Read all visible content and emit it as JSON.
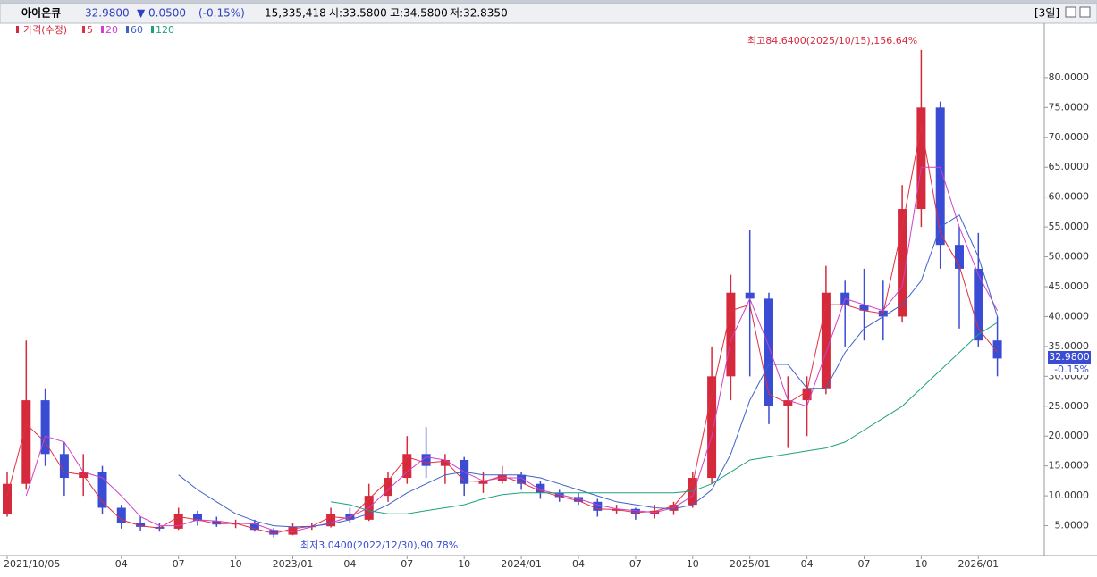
{
  "chart_data": {
    "type": "candlestick",
    "title": "아이온큐",
    "header": {
      "price": "32.9800",
      "change": "▼ 0.0500",
      "change_pct": "(-0.15%)",
      "volume": "15,335,418",
      "open": "시:33.5800",
      "high": "고:34.5800",
      "low": "저:32.8350",
      "period": "[3일]"
    },
    "price_name": "가격(수정)",
    "up_color": "#d42a3c",
    "down_color": "#3a4cd4",
    "categories": [
      "2021/10/05",
      null,
      null,
      null,
      null,
      null,
      "04",
      null,
      null,
      "07",
      null,
      null,
      "10",
      null,
      null,
      "2023/01",
      null,
      null,
      "04",
      null,
      null,
      "07",
      null,
      null,
      "10",
      null,
      null,
      "2024/01",
      null,
      null,
      "04",
      null,
      null,
      "07",
      null,
      null,
      "10",
      null,
      null,
      "2025/01",
      null,
      null,
      "04",
      null,
      null,
      "07",
      null,
      null,
      "10",
      null,
      null,
      "2026/01",
      null
    ],
    "open": [
      7,
      12,
      26,
      17,
      13,
      14,
      8,
      5.5,
      4.8,
      4.5,
      7,
      5.8,
      5.2,
      5.5,
      4.3,
      3.5,
      4.8,
      4.9,
      7,
      6,
      10,
      13,
      17,
      15,
      16,
      12,
      12.5,
      13.5,
      12,
      10.5,
      9.8,
      9,
      7.5,
      7.8,
      7,
      7.5,
      8.5,
      13,
      30,
      44,
      43,
      25,
      26,
      28,
      44,
      42,
      41,
      40,
      58,
      75,
      52,
      48,
      36
    ],
    "high": [
      14,
      36,
      28,
      19,
      17,
      15,
      8.5,
      6.5,
      5.5,
      8,
      7.5,
      6.5,
      6,
      6,
      4.6,
      5.5,
      5.5,
      8,
      8,
      12,
      14,
      20,
      21.5,
      17,
      16.5,
      14,
      15,
      14,
      12.5,
      11,
      10.5,
      9.5,
      8.5,
      8,
      8.5,
      9,
      14,
      35,
      47,
      54.5,
      44,
      30,
      30,
      48.5,
      46,
      48,
      46,
      62,
      84.64,
      76,
      55,
      54,
      40
    ],
    "low": [
      6.5,
      11,
      15,
      10,
      10,
      7,
      4.5,
      4.2,
      4,
      4.3,
      5,
      4.8,
      4.6,
      4,
      3.04,
      3.4,
      4.3,
      4.7,
      5.5,
      5.8,
      9,
      12,
      13,
      12,
      10,
      10.5,
      12,
      11,
      9.5,
      9,
      8.5,
      6.5,
      7,
      6,
      6.2,
      6.8,
      8,
      12,
      26,
      30,
      22,
      18,
      20,
      27,
      35,
      36,
      36,
      39,
      55,
      48,
      38,
      35,
      30
    ],
    "close": [
      12,
      26,
      17,
      13,
      14,
      8,
      5.5,
      4.8,
      4.5,
      7,
      5.8,
      5.2,
      5.5,
      4.3,
      3.5,
      4.8,
      4.9,
      7,
      6,
      10,
      13,
      17,
      15,
      16,
      12,
      12.5,
      13.5,
      12,
      10.5,
      9.8,
      9,
      7.5,
      7.8,
      7,
      7.5,
      8.5,
      13,
      30,
      44,
      43,
      25,
      26,
      28,
      44,
      42,
      41,
      40,
      58,
      75,
      52,
      48,
      36,
      32.98
    ],
    "series": [
      {
        "name": "5",
        "color": "#e03040",
        "values": [
          10,
          22,
          19,
          14,
          13.5,
          9,
          6,
          5,
          4.6,
          6.5,
          6,
          5.3,
          5.4,
          4.5,
          3.7,
          4.5,
          4.9,
          6.5,
          6.2,
          9.5,
          12.5,
          16.5,
          15.5,
          15.8,
          12.5,
          12.4,
          13.3,
          12.2,
          10.8,
          9.9,
          9.2,
          7.8,
          7.7,
          7.2,
          7.4,
          8.3,
          12,
          27,
          41,
          42,
          27,
          25.5,
          27.5,
          42,
          42,
          41,
          40.5,
          55,
          72,
          54,
          48.5,
          38,
          34
        ]
      },
      {
        "name": "20",
        "color": "#d040c8",
        "values": [
          null,
          10,
          20,
          19,
          14,
          13,
          10,
          6.5,
          5,
          5,
          6,
          5.8,
          5.4,
          5.3,
          4.2,
          4,
          4.8,
          5.5,
          6.5,
          8,
          11,
          14,
          16.5,
          16,
          14,
          12.5,
          13,
          13,
          11,
          10.2,
          9.5,
          8.5,
          7.8,
          7.5,
          7.2,
          8,
          10,
          20,
          36,
          43,
          35,
          26,
          25,
          34,
          43,
          42,
          41,
          45,
          65,
          65,
          55,
          47,
          41
        ]
      },
      {
        "name": "60",
        "color": "#4060c8",
        "values": [
          null,
          null,
          null,
          null,
          null,
          null,
          null,
          null,
          null,
          13.5,
          11,
          9,
          7,
          5.8,
          5,
          4.8,
          4.9,
          5.3,
          6,
          7,
          8.5,
          10.5,
          12,
          13.5,
          14,
          13.5,
          13.5,
          13.5,
          13,
          12,
          11,
          10,
          9,
          8.5,
          8,
          7.8,
          8.5,
          11,
          17,
          26,
          32,
          32,
          28,
          28,
          34,
          38,
          40,
          42,
          46,
          55,
          57,
          50,
          40
        ]
      },
      {
        "name": "120",
        "color": "#20a080",
        "values": [
          null,
          null,
          null,
          null,
          null,
          null,
          null,
          null,
          null,
          null,
          null,
          null,
          null,
          null,
          null,
          null,
          null,
          9,
          8.5,
          7.5,
          7,
          7,
          7.5,
          8,
          8.5,
          9.5,
          10.2,
          10.5,
          10.5,
          10.5,
          10.5,
          10.5,
          10.5,
          10.5,
          10.5,
          10.5,
          10.8,
          12,
          14,
          16,
          16.5,
          17,
          17.5,
          18,
          19,
          21,
          23,
          25,
          28,
          31,
          34,
          37,
          39
        ]
      }
    ],
    "ylim": [
      0,
      90
    ],
    "yticks": [
      {
        "value": 5,
        "label": "5.0000"
      },
      {
        "value": 10,
        "label": "10.0000"
      },
      {
        "value": 15,
        "label": "15.0000"
      },
      {
        "value": 20,
        "label": "20.0000"
      },
      {
        "value": 25,
        "label": "25.0000"
      },
      {
        "value": 30,
        "label": "30.0000"
      },
      {
        "value": 35,
        "label": "35.0000"
      },
      {
        "value": 40,
        "label": "40.0000"
      },
      {
        "value": 45,
        "label": "45.0000"
      },
      {
        "value": 50,
        "label": "50.0000"
      },
      {
        "value": 55,
        "label": "55.0000"
      },
      {
        "value": 60,
        "label": "60.0000"
      },
      {
        "value": 65,
        "label": "65.0000"
      },
      {
        "value": 70,
        "label": "70.0000"
      },
      {
        "value": 75,
        "label": "75.0000"
      },
      {
        "value": 80,
        "label": "80.0000"
      }
    ],
    "last_label": {
      "price": "32.9800",
      "pct": "-0.15%"
    },
    "annotations": {
      "high": "최고84.6400(2025/10/15),156.64%",
      "low": "최저3.0400(2022/12/30),90.78%"
    }
  }
}
